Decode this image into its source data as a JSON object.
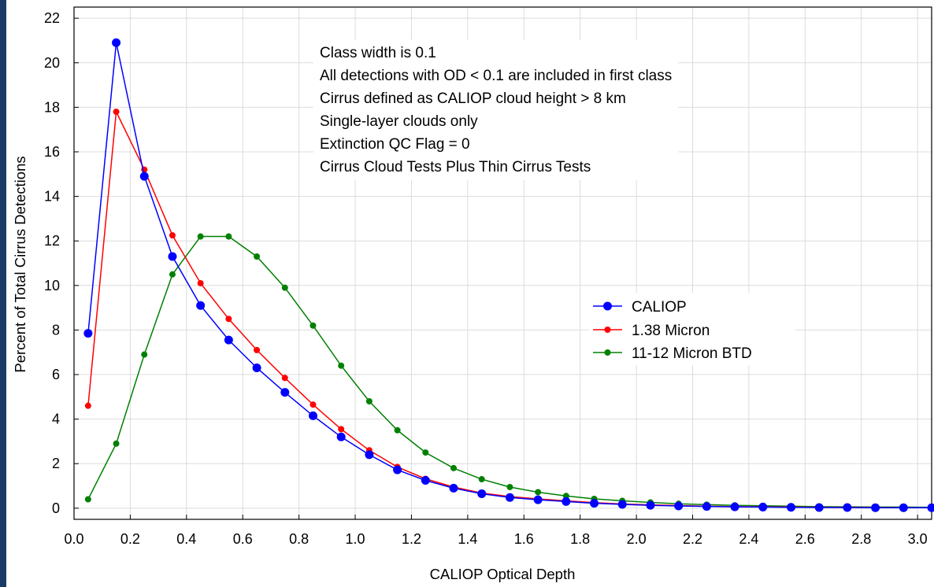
{
  "chart_data": {
    "type": "line",
    "xlabel": "CALIOP Optical Depth",
    "ylabel": "Percent of Total Cirrus Detections",
    "xlim": [
      0.0,
      3.05
    ],
    "ylim": [
      -0.5,
      22.5
    ],
    "x_ticks": [
      "0.0",
      "0.2",
      "0.4",
      "0.6",
      "0.8",
      "1.0",
      "1.2",
      "1.4",
      "1.6",
      "1.8",
      "2.0",
      "2.2",
      "2.4",
      "2.6",
      "2.8",
      "3.0"
    ],
    "y_ticks": [
      "0",
      "2",
      "4",
      "6",
      "8",
      "10",
      "12",
      "14",
      "16",
      "18",
      "20",
      "22"
    ],
    "grid": true,
    "legend_position": "right",
    "annotations": [
      "Class width is 0.1",
      "All detections with OD < 0.1 are included in first class",
      "Cirrus defined as CALIOP cloud height > 8 km",
      "Single-layer clouds only",
      "Extinction QC Flag = 0",
      "Cirrus Cloud Tests Plus Thin Cirrus Tests"
    ],
    "x": [
      0.05,
      0.15,
      0.25,
      0.35,
      0.45,
      0.55,
      0.65,
      0.75,
      0.85,
      0.95,
      1.05,
      1.15,
      1.25,
      1.35,
      1.45,
      1.55,
      1.65,
      1.75,
      1.85,
      1.95,
      2.05,
      2.15,
      2.25,
      2.35,
      2.45,
      2.55,
      2.65,
      2.75,
      2.85,
      2.95,
      3.05
    ],
    "series": [
      {
        "name": "CALIOP",
        "color": "#0000ff",
        "values": [
          7.85,
          20.9,
          14.9,
          11.3,
          9.1,
          7.55,
          6.3,
          5.2,
          4.15,
          3.2,
          2.4,
          1.72,
          1.25,
          0.9,
          0.65,
          0.48,
          0.38,
          0.3,
          0.22,
          0.17,
          0.13,
          0.1,
          0.08,
          0.06,
          0.05,
          0.04,
          0.03,
          0.03,
          0.02,
          0.02,
          0.02
        ]
      },
      {
        "name": "1.38 Micron",
        "color": "#ff0000",
        "values": [
          4.6,
          17.8,
          15.2,
          12.25,
          10.1,
          8.5,
          7.1,
          5.85,
          4.65,
          3.55,
          2.6,
          1.85,
          1.32,
          0.95,
          0.68,
          0.52,
          0.42,
          0.33,
          0.25,
          0.19,
          0.15,
          0.12,
          0.09,
          0.07,
          0.06,
          0.05,
          0.04,
          0.03,
          0.03,
          0.02,
          0.02
        ]
      },
      {
        "name": "11-12 Micron BTD",
        "color": "#008000",
        "values": [
          0.4,
          2.9,
          6.9,
          10.5,
          12.2,
          12.2,
          11.3,
          9.9,
          8.2,
          6.4,
          4.8,
          3.5,
          2.5,
          1.8,
          1.3,
          0.95,
          0.72,
          0.55,
          0.42,
          0.33,
          0.26,
          0.2,
          0.16,
          0.13,
          0.11,
          0.09,
          0.07,
          0.06,
          0.05,
          0.05,
          0.04
        ]
      }
    ]
  }
}
